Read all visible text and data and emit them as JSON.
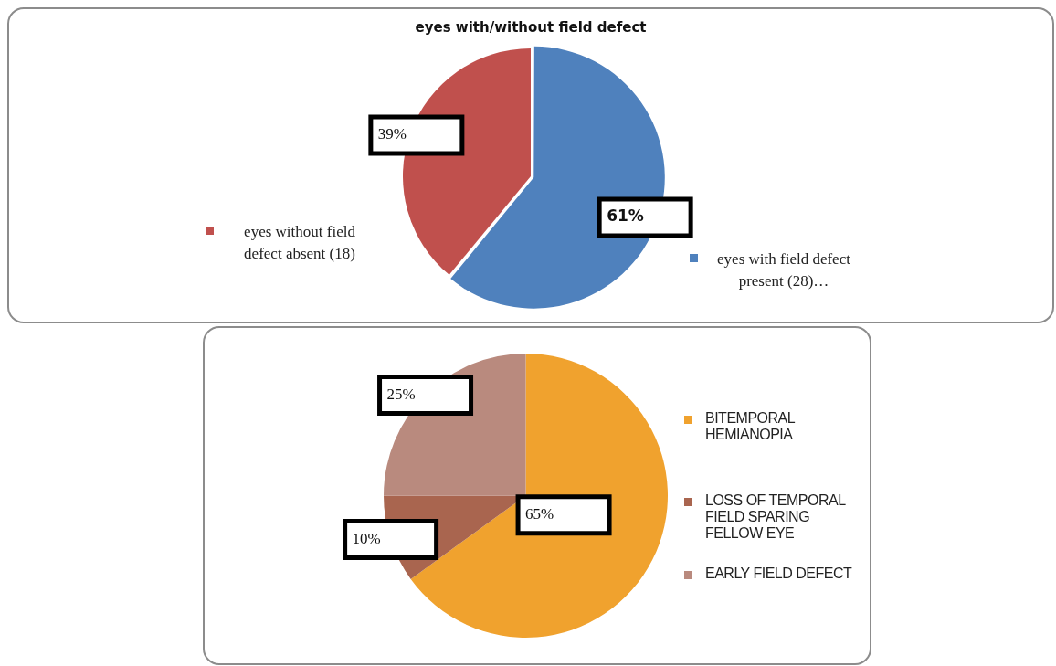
{
  "chart_data": [
    {
      "type": "pie",
      "title": "eyes with/without field defect",
      "categories": [
        "eyes with field defect present (28)…",
        "eyes without field defect absent (18)"
      ],
      "values": [
        61,
        39
      ],
      "colors": [
        "#4f81bd",
        "#c0504d"
      ],
      "value_labels": [
        "61%",
        "39%"
      ],
      "legend": "bottom"
    },
    {
      "type": "pie",
      "categories": [
        "BITEMPORAL HEMIANOPIA",
        "LOSS OF TEMPORAL FIELD SPARING FELLOW EYE",
        "EARLY FIELD DEFECT"
      ],
      "values": [
        65,
        10,
        25
      ],
      "colors": [
        "#f0a22e",
        "#a9654f",
        "#b98a7e"
      ],
      "value_labels": [
        "65%",
        "10%",
        "25%"
      ],
      "legend": "right"
    }
  ]
}
